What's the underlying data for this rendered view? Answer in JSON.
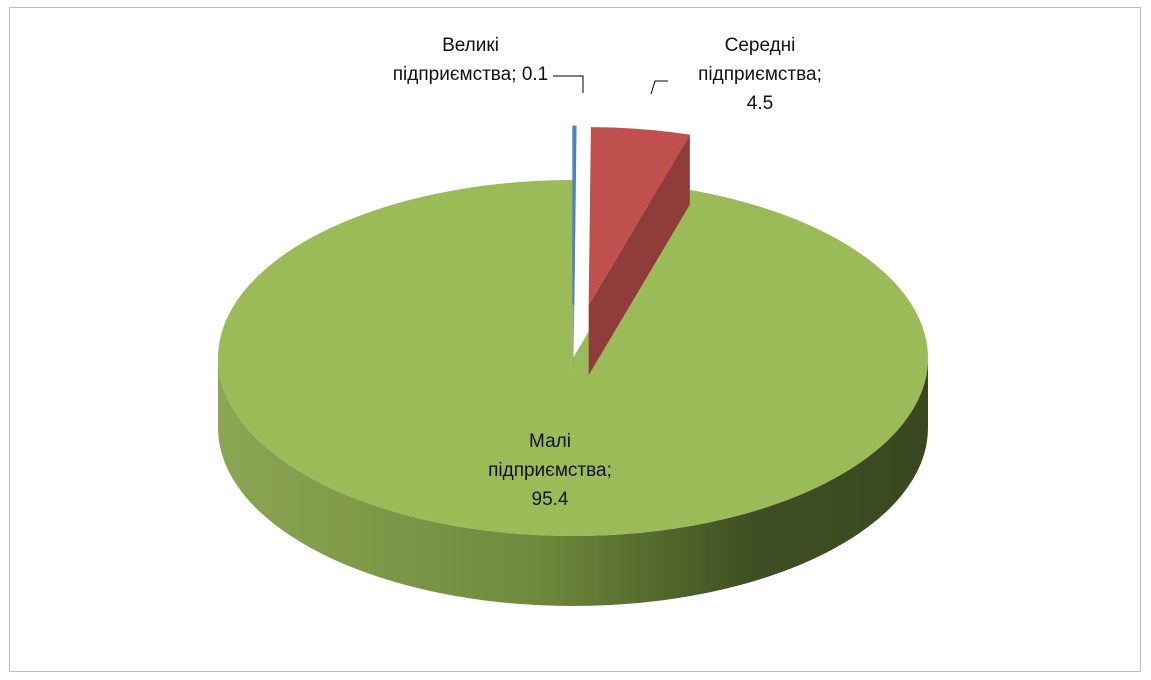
{
  "chart_data": {
    "type": "pie",
    "categories": [
      "Великі підприємства",
      "Середні підприємства",
      "Малі підприємства"
    ],
    "values": [
      0.1,
      4.5,
      95.4
    ],
    "colors": [
      "#4f81bd",
      "#c0504d",
      "#9bbb59"
    ],
    "label_separator": "; ",
    "three_d": true
  }
}
